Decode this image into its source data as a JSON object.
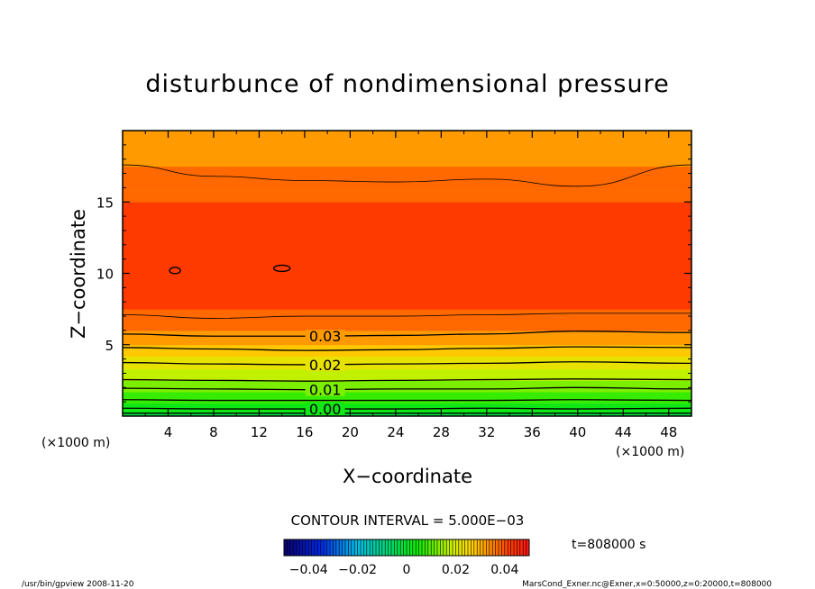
{
  "chart_data": {
    "type": "heatmap",
    "title": "disturbunce of nondimensional pressure",
    "xlabel": "X−coordinate",
    "ylabel": "Z−coordinate",
    "x_unit_left": "(×1000 m)",
    "x_unit_right": "(×1000 m)",
    "xlim": [
      0,
      50
    ],
    "ylim": [
      0,
      20
    ],
    "xticks": [
      4,
      8,
      12,
      16,
      20,
      24,
      28,
      32,
      36,
      40,
      44,
      48
    ],
    "yticks": [
      5,
      10,
      15
    ],
    "contour_interval_text": "CONTOUR INTERVAL = 5.000E−03",
    "contour_labels": [
      {
        "text": "0.03",
        "value": 0.03
      },
      {
        "text": "0.02",
        "value": 0.02
      },
      {
        "text": "0.01",
        "value": 0.01
      },
      {
        "text": "0.00",
        "value": 0.0
      }
    ],
    "colorbar": {
      "min": -0.05,
      "max": 0.05,
      "tick_labels": [
        "−0.04",
        "−0.02",
        "0",
        "0.02",
        "0.04"
      ],
      "tick_values": [
        -0.04,
        -0.02,
        0,
        0.02,
        0.04
      ]
    },
    "time_label": "t=808000  s",
    "footer_left": "/usr/bin/gpview   2008-11-20",
    "footer_right": "MarsCond_Exner.nc@Exner,x=0:50000,z=0:20000,t=808000",
    "profile": {
      "z": [
        0,
        0.5,
        1,
        1.5,
        2,
        2.5,
        3,
        3.5,
        4,
        4.5,
        5,
        5.5,
        6,
        6.5,
        7,
        7.5,
        8,
        9,
        10,
        11,
        12,
        13,
        14,
        15,
        16,
        17,
        17.5,
        18,
        19,
        20
      ],
      "value": [
        -0.002,
        0.002,
        0.006,
        0.009,
        0.012,
        0.015,
        0.018,
        0.021,
        0.024,
        0.027,
        0.03,
        0.033,
        0.035,
        0.037,
        0.039,
        0.04,
        0.041,
        0.042,
        0.0425,
        0.0425,
        0.042,
        0.0415,
        0.041,
        0.04,
        0.039,
        0.0365,
        0.035,
        0.034,
        0.032,
        0.03
      ]
    },
    "contour_levels": [
      {
        "level": -0.005,
        "z": [
          0.2,
          0.2,
          0.2,
          0.2,
          0.2,
          0.2,
          0.2
        ]
      },
      {
        "level": 0.0,
        "z": [
          0.55,
          0.5,
          0.5,
          0.5,
          0.55,
          0.5,
          0.55
        ]
      },
      {
        "level": 0.005,
        "z": [
          1.15,
          1.1,
          1.1,
          1.1,
          1.1,
          1.15,
          1.1
        ]
      },
      {
        "level": 0.01,
        "z": [
          1.95,
          1.9,
          1.85,
          1.9,
          1.9,
          2.0,
          1.9
        ]
      },
      {
        "level": 0.015,
        "z": [
          2.55,
          2.5,
          2.45,
          2.5,
          2.55,
          2.6,
          2.55
        ]
      },
      {
        "level": 0.02,
        "z": [
          3.75,
          3.65,
          3.6,
          3.65,
          3.7,
          3.8,
          3.7
        ]
      },
      {
        "level": 0.025,
        "z": [
          4.8,
          4.7,
          4.6,
          4.65,
          4.75,
          4.85,
          4.8
        ]
      },
      {
        "level": 0.03,
        "z": [
          5.75,
          5.6,
          5.6,
          5.65,
          5.75,
          5.95,
          5.85
        ]
      },
      {
        "level": 0.035,
        "z": [
          7.1,
          6.85,
          7.0,
          7.0,
          7.1,
          7.2,
          7.2
        ]
      },
      {
        "level": 0.035,
        "z": [
          17.6,
          16.8,
          16.5,
          16.4,
          16.6,
          16.1,
          17.6
        ]
      }
    ],
    "contour_x": [
      0,
      8,
      16,
      24,
      32,
      40,
      50
    ],
    "closed_contours": [
      {
        "level": 0.045,
        "x": 4.6,
        "z": 10.2
      },
      {
        "level": 0.045,
        "x": 14.0,
        "z": 10.35
      }
    ]
  }
}
